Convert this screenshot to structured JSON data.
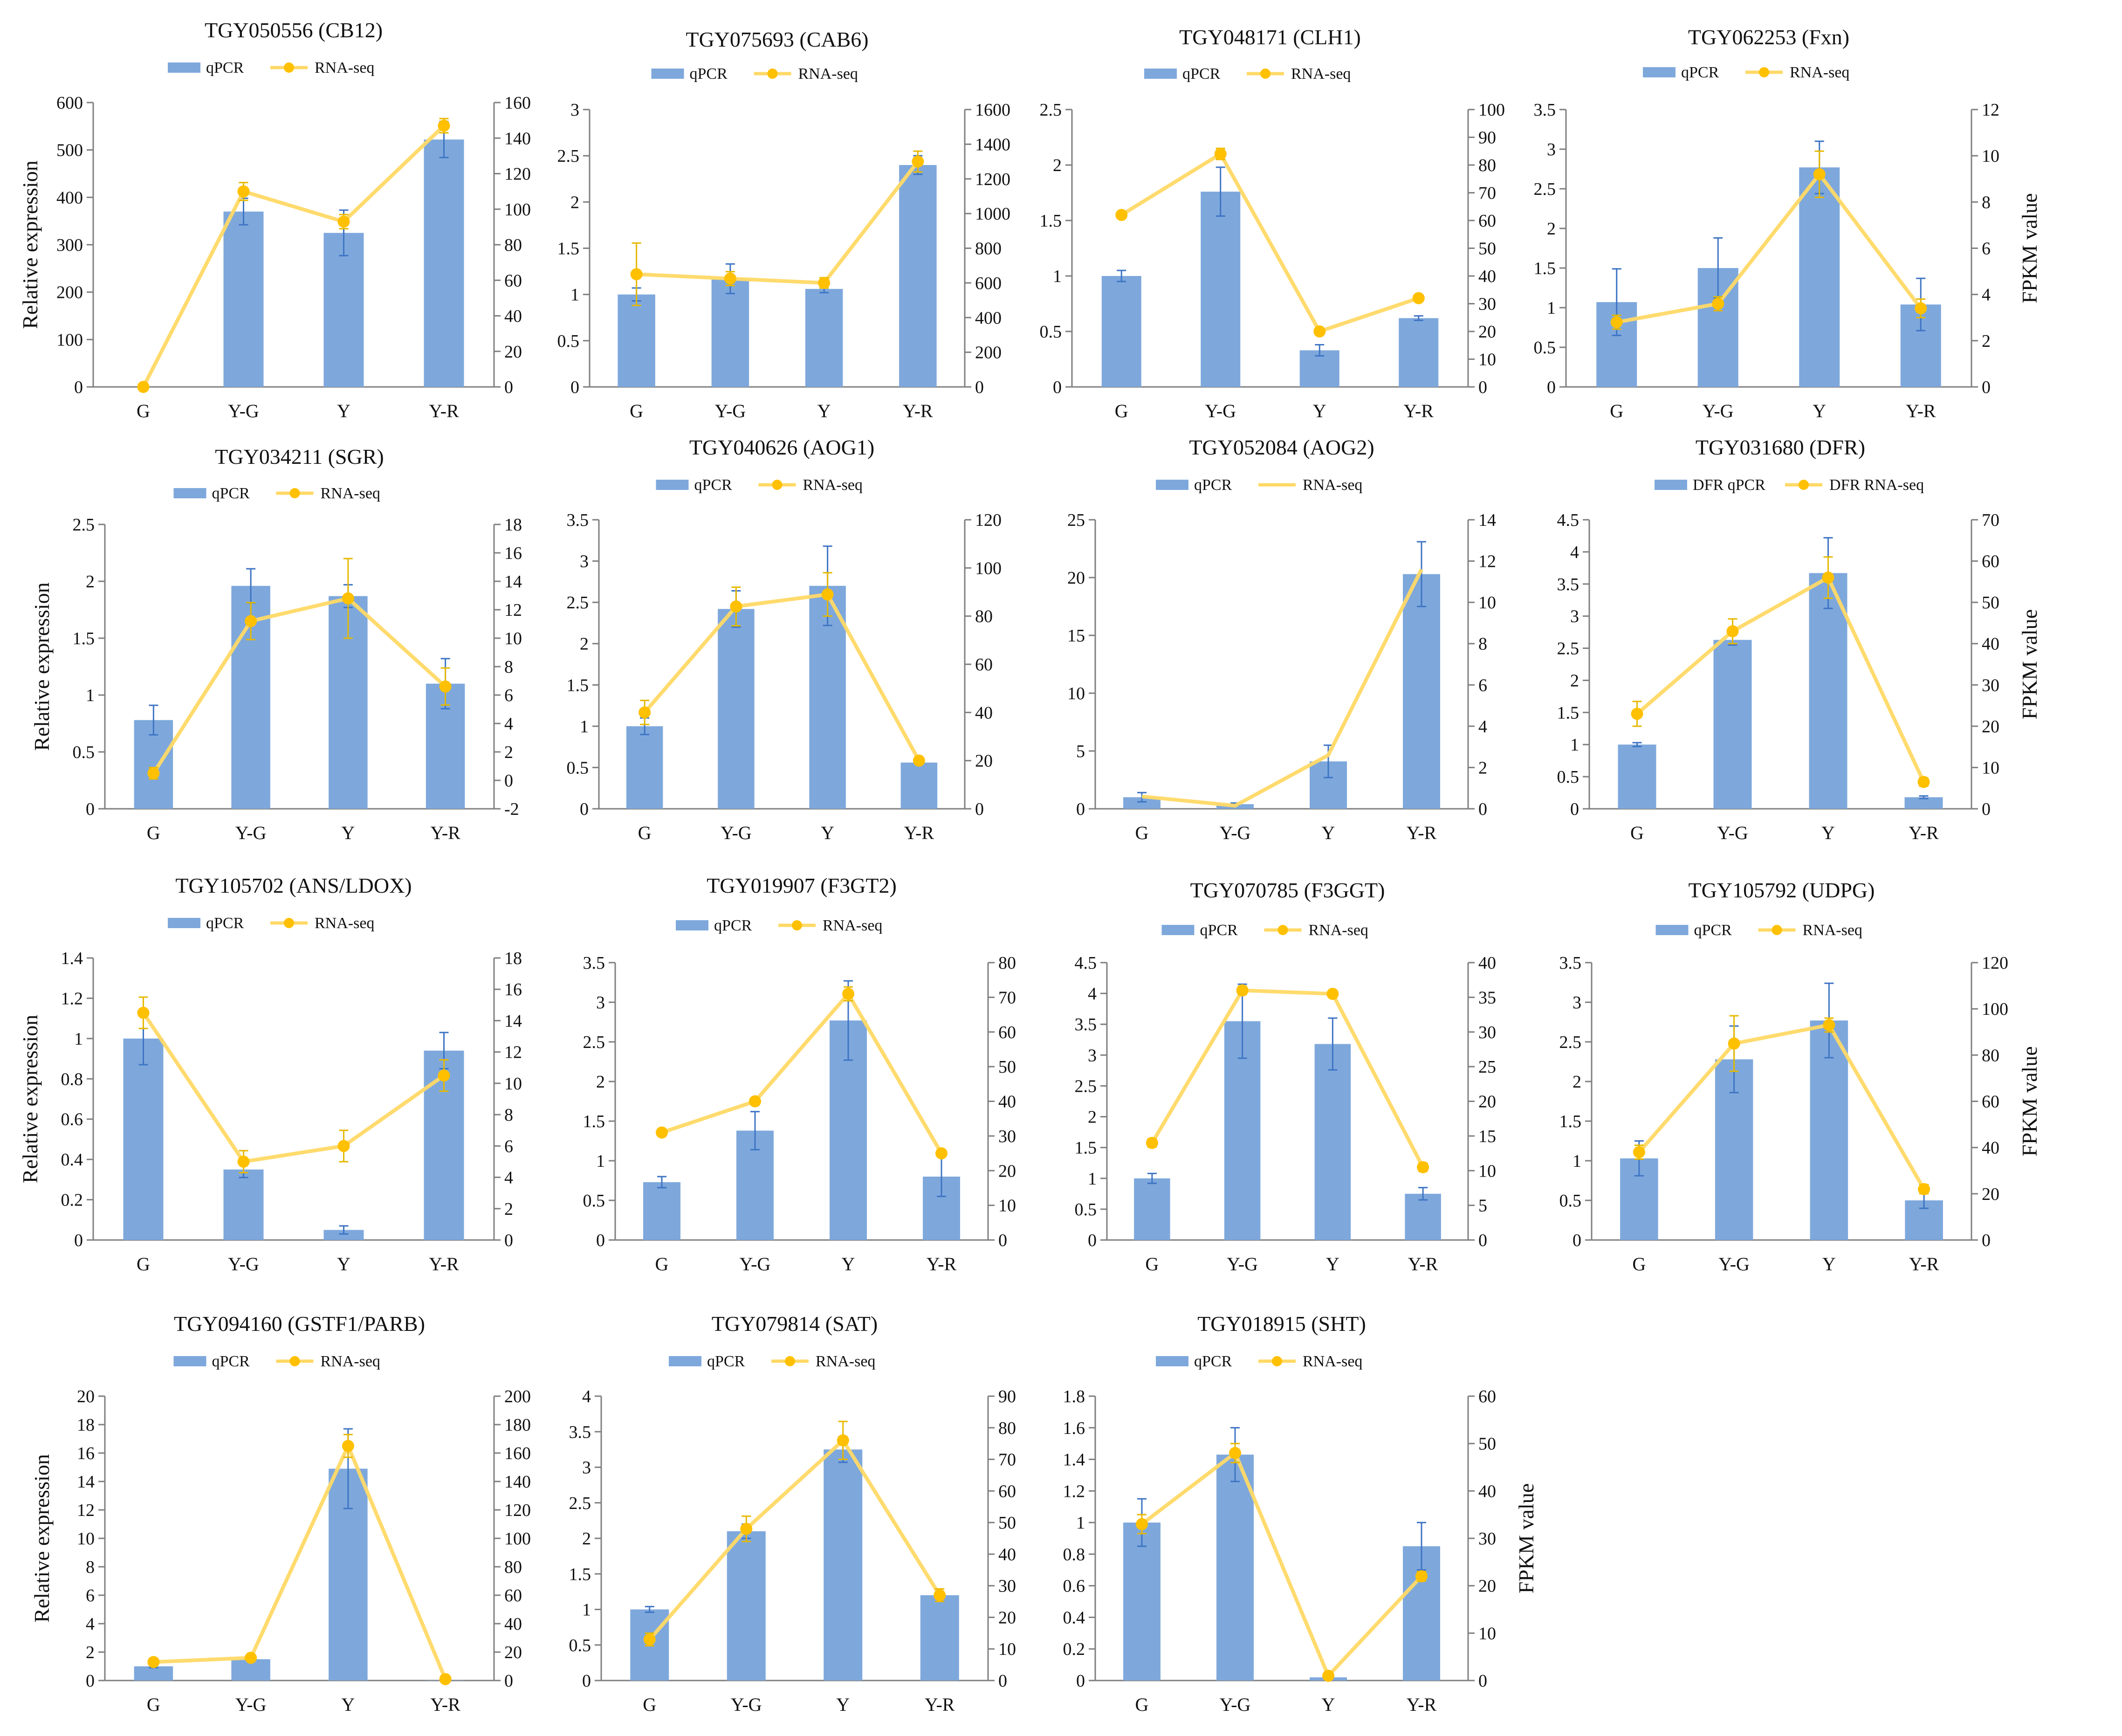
{
  "colors": {
    "bar": "#7ea8dc",
    "bar_err": "#3e74c4",
    "line": "#ffd966",
    "marker": "#ffc000",
    "marker_err": "#e6b800",
    "axis": "#7f7f7f",
    "text": "#111111"
  },
  "chart_data": [
    {
      "type": "bar+line",
      "title": "TGY050556  (CB12)",
      "categories": [
        "G",
        "Y-G",
        "Y",
        "Y-R"
      ],
      "legend": [
        "qPCR",
        "RNA-seq"
      ],
      "legend_line_marker": true,
      "ylabel": "Relative expression",
      "y2label": "",
      "ylim": [
        0,
        600
      ],
      "yticks": [
        0,
        100,
        200,
        300,
        400,
        500,
        600
      ],
      "y2lim": [
        0,
        160
      ],
      "y2ticks": [
        0,
        20,
        40,
        60,
        80,
        100,
        120,
        140,
        160
      ],
      "series": [
        {
          "name": "qPCR",
          "axis": "left",
          "values": [
            0,
            370,
            325,
            522
          ],
          "errors": [
            0,
            28,
            48,
            38
          ]
        },
        {
          "name": "RNA-seq",
          "axis": "right",
          "values": [
            0,
            110,
            93,
            147
          ],
          "errors": [
            0,
            5,
            4,
            4
          ]
        }
      ]
    },
    {
      "type": "bar+line",
      "title": "TGY075693  (CAB6)",
      "categories": [
        "G",
        "Y-G",
        "Y",
        "Y-R"
      ],
      "legend": [
        "qPCR",
        "RNA-seq"
      ],
      "legend_line_marker": true,
      "ylabel": "",
      "y2label": "",
      "ylim": [
        0,
        3
      ],
      "yticks": [
        0,
        0.5,
        1,
        1.5,
        2,
        2.5,
        3
      ],
      "y2lim": [
        0,
        1600
      ],
      "y2ticks": [
        0,
        200,
        400,
        600,
        800,
        1000,
        1200,
        1400,
        1600
      ],
      "series": [
        {
          "name": "qPCR",
          "axis": "left",
          "values": [
            1.0,
            1.17,
            1.06,
            2.4
          ],
          "errors": [
            0.07,
            0.16,
            0.04,
            0.1
          ]
        },
        {
          "name": "RNA-seq",
          "axis": "right",
          "values": [
            650,
            625,
            600,
            1300
          ],
          "errors": [
            180,
            40,
            30,
            60
          ]
        }
      ]
    },
    {
      "type": "bar+line",
      "title": "TGY048171  (CLH1)",
      "categories": [
        "G",
        "Y-G",
        "Y",
        "Y-R"
      ],
      "legend": [
        "qPCR",
        "RNA-seq"
      ],
      "legend_line_marker": true,
      "ylabel": "",
      "y2label": "",
      "ylim": [
        0,
        2.5
      ],
      "yticks": [
        0,
        0.5,
        1,
        1.5,
        2,
        2.5
      ],
      "y2lim": [
        0,
        100
      ],
      "y2ticks": [
        0,
        10,
        20,
        30,
        40,
        50,
        60,
        70,
        80,
        90,
        100
      ],
      "series": [
        {
          "name": "qPCR",
          "axis": "left",
          "values": [
            1.0,
            1.76,
            0.33,
            0.62
          ],
          "errors": [
            0.05,
            0.22,
            0.05,
            0.02
          ]
        },
        {
          "name": "RNA-seq",
          "axis": "right",
          "values": [
            62,
            84,
            20,
            32
          ],
          "errors": [
            1,
            2,
            1,
            1
          ]
        }
      ]
    },
    {
      "type": "bar+line",
      "title": "TGY062253  (Fxn)",
      "categories": [
        "G",
        "Y-G",
        "Y",
        "Y-R"
      ],
      "legend": [
        "qPCR",
        "RNA-seq"
      ],
      "legend_line_marker": true,
      "ylabel": "",
      "y2label": "FPKM value",
      "ylim": [
        0,
        3.5
      ],
      "yticks": [
        0,
        0.5,
        1,
        1.5,
        2,
        2.5,
        3,
        3.5
      ],
      "y2lim": [
        0,
        12
      ],
      "y2ticks": [
        0,
        2,
        4,
        6,
        8,
        10,
        12
      ],
      "series": [
        {
          "name": "qPCR",
          "axis": "left",
          "values": [
            1.07,
            1.5,
            2.77,
            1.04
          ],
          "errors": [
            0.42,
            0.38,
            0.33,
            0.33
          ]
        },
        {
          "name": "RNA-seq",
          "axis": "right",
          "values": [
            2.8,
            3.6,
            9.2,
            3.4
          ],
          "errors": [
            0.3,
            0.3,
            1.0,
            0.4
          ]
        }
      ]
    },
    {
      "type": "bar+line",
      "title": "TGY034211  (SGR)",
      "categories": [
        "G",
        "Y-G",
        "Y",
        "Y-R"
      ],
      "legend": [
        "qPCR",
        "RNA-seq"
      ],
      "legend_line_marker": true,
      "ylabel": "Relative expression",
      "y2label": "",
      "ylim": [
        0,
        2.5
      ],
      "yticks": [
        0,
        0.5,
        1,
        1.5,
        2,
        2.5
      ],
      "y2lim": [
        -2,
        18
      ],
      "y2ticks": [
        -2,
        0,
        2,
        4,
        6,
        8,
        10,
        12,
        14,
        16,
        18
      ],
      "series": [
        {
          "name": "qPCR",
          "axis": "left",
          "values": [
            0.78,
            1.96,
            1.87,
            1.1
          ],
          "errors": [
            0.13,
            0.15,
            0.1,
            0.22
          ]
        },
        {
          "name": "RNA-seq",
          "axis": "right",
          "values": [
            0.5,
            11.2,
            12.8,
            6.6
          ],
          "errors": [
            0.4,
            1.3,
            2.8,
            1.3
          ]
        }
      ]
    },
    {
      "type": "bar+line",
      "title": "TGY040626  (AOG1)",
      "categories": [
        "G",
        "Y-G",
        "Y",
        "Y-R"
      ],
      "legend": [
        "qPCR",
        "RNA-seq"
      ],
      "legend_line_marker": true,
      "ylabel": "",
      "y2label": "",
      "ylim": [
        0,
        3.5
      ],
      "yticks": [
        0,
        0.5,
        1,
        1.5,
        2,
        2.5,
        3,
        3.5
      ],
      "y2lim": [
        0,
        120
      ],
      "y2ticks": [
        0,
        20,
        40,
        60,
        80,
        100,
        120
      ],
      "series": [
        {
          "name": "qPCR",
          "axis": "left",
          "values": [
            1.0,
            2.42,
            2.7,
            0.56
          ],
          "errors": [
            0.1,
            0.22,
            0.48,
            0.02
          ]
        },
        {
          "name": "RNA-seq",
          "axis": "right",
          "values": [
            40,
            84,
            89,
            20
          ],
          "errors": [
            5,
            8,
            9,
            1
          ]
        }
      ]
    },
    {
      "type": "bar+line",
      "title": "TGY052084  (AOG2)",
      "categories": [
        "G",
        "Y-G",
        "Y",
        "Y-R"
      ],
      "legend": [
        "qPCR",
        "RNA-seq"
      ],
      "legend_line_marker": false,
      "ylabel": "",
      "y2label": "",
      "ylim": [
        0,
        25
      ],
      "yticks": [
        0,
        5,
        10,
        15,
        20,
        25
      ],
      "y2lim": [
        0,
        14
      ],
      "y2ticks": [
        0,
        2,
        4,
        6,
        8,
        10,
        12,
        14
      ],
      "series": [
        {
          "name": "qPCR",
          "axis": "left",
          "values": [
            1.0,
            0.4,
            4.1,
            20.3
          ],
          "errors": [
            0.4,
            0.1,
            1.4,
            2.8
          ]
        },
        {
          "name": "RNA-seq",
          "axis": "right",
          "values": [
            0.6,
            0.15,
            2.6,
            11.6
          ],
          "errors": [
            0,
            0,
            0,
            0
          ]
        }
      ]
    },
    {
      "type": "bar+line",
      "title": "TGY031680  (DFR)",
      "categories": [
        "G",
        "Y-G",
        "Y",
        "Y-R"
      ],
      "legend": [
        "DFR qPCR",
        "DFR RNA-seq"
      ],
      "legend_line_marker": true,
      "ylabel": "",
      "y2label": "FPKM value",
      "ylim": [
        0,
        4.5
      ],
      "yticks": [
        0,
        0.5,
        1,
        1.5,
        2,
        2.5,
        3,
        3.5,
        4,
        4.5
      ],
      "y2lim": [
        0,
        70
      ],
      "y2ticks": [
        0,
        10,
        20,
        30,
        40,
        50,
        60,
        70
      ],
      "series": [
        {
          "name": "qPCR",
          "axis": "left",
          "values": [
            1.0,
            2.63,
            3.67,
            0.18
          ],
          "errors": [
            0.03,
            0.08,
            0.55,
            0.02
          ]
        },
        {
          "name": "RNA-seq",
          "axis": "right",
          "values": [
            23,
            43,
            56,
            6.5
          ],
          "errors": [
            3,
            3,
            5,
            1
          ]
        }
      ]
    },
    {
      "type": "bar+line",
      "title": "TGY105702  (ANS/LDOX)",
      "categories": [
        "G",
        "Y-G",
        "Y",
        "Y-R"
      ],
      "legend": [
        "qPCR",
        "RNA-seq"
      ],
      "legend_line_marker": true,
      "ylabel": "Relative expression",
      "y2label": "",
      "ylim": [
        0,
        1.4
      ],
      "yticks": [
        0,
        0.2,
        0.4,
        0.6,
        0.8,
        1,
        1.2,
        1.4
      ],
      "y2lim": [
        0,
        18
      ],
      "y2ticks": [
        0,
        2,
        4,
        6,
        8,
        10,
        12,
        14,
        16,
        18
      ],
      "series": [
        {
          "name": "qPCR",
          "axis": "left",
          "values": [
            1.0,
            0.35,
            0.05,
            0.94
          ],
          "errors": [
            0.13,
            0.04,
            0.02,
            0.09
          ]
        },
        {
          "name": "RNA-seq",
          "axis": "right",
          "values": [
            14.5,
            5.0,
            6.0,
            10.5
          ],
          "errors": [
            1.0,
            0.7,
            1.0,
            1.0
          ]
        }
      ]
    },
    {
      "type": "bar+line",
      "title": "TGY019907  (F3GT2)",
      "categories": [
        "G",
        "Y-G",
        "Y",
        "Y-R"
      ],
      "legend": [
        "qPCR",
        "RNA-seq"
      ],
      "legend_line_marker": true,
      "ylabel": "",
      "y2label": "",
      "ylim": [
        0,
        3.5
      ],
      "yticks": [
        0,
        0.5,
        1,
        1.5,
        2,
        2.5,
        3,
        3.5
      ],
      "y2lim": [
        0,
        80
      ],
      "y2ticks": [
        0,
        10,
        20,
        30,
        40,
        50,
        60,
        70,
        80
      ],
      "series": [
        {
          "name": "qPCR",
          "axis": "left",
          "values": [
            0.73,
            1.38,
            2.77,
            0.8
          ],
          "errors": [
            0.07,
            0.24,
            0.5,
            0.25
          ]
        },
        {
          "name": "RNA-seq",
          "axis": "right",
          "values": [
            31,
            40,
            71,
            25
          ],
          "errors": [
            1,
            1,
            2,
            1
          ]
        }
      ]
    },
    {
      "type": "bar+line",
      "title": "TGY070785  (F3GGT)",
      "categories": [
        "G",
        "Y-G",
        "Y",
        "Y-R"
      ],
      "legend": [
        "qPCR",
        "RNA-seq"
      ],
      "legend_line_marker": true,
      "ylabel": "",
      "y2label": "",
      "ylim": [
        0,
        4.5
      ],
      "yticks": [
        0,
        0.5,
        1,
        1.5,
        2,
        2.5,
        3,
        3.5,
        4,
        4.5
      ],
      "y2lim": [
        0,
        40
      ],
      "y2ticks": [
        0,
        5,
        10,
        15,
        20,
        25,
        30,
        35,
        40
      ],
      "series": [
        {
          "name": "qPCR",
          "axis": "left",
          "values": [
            1.0,
            3.55,
            3.18,
            0.75
          ],
          "errors": [
            0.08,
            0.6,
            0.42,
            0.1
          ]
        },
        {
          "name": "RNA-seq",
          "axis": "right",
          "values": [
            14,
            36,
            35.5,
            10.5
          ],
          "errors": [
            0.6,
            0.6,
            0.5,
            0.6
          ]
        }
      ]
    },
    {
      "type": "bar+line",
      "title": "TGY105792  (UDPG)",
      "categories": [
        "G",
        "Y-G",
        "Y",
        "Y-R"
      ],
      "legend": [
        "qPCR",
        "RNA-seq"
      ],
      "legend_line_marker": true,
      "ylabel": "",
      "y2label": "FPKM value",
      "ylim": [
        0,
        3.5
      ],
      "yticks": [
        0,
        0.5,
        1,
        1.5,
        2,
        2.5,
        3,
        3.5
      ],
      "y2lim": [
        0,
        120
      ],
      "y2ticks": [
        0,
        20,
        40,
        60,
        80,
        100,
        120
      ],
      "series": [
        {
          "name": "qPCR",
          "axis": "left",
          "values": [
            1.03,
            2.28,
            2.77,
            0.5
          ],
          "errors": [
            0.22,
            0.42,
            0.47,
            0.1
          ]
        },
        {
          "name": "RNA-seq",
          "axis": "right",
          "values": [
            38,
            85,
            93,
            22
          ],
          "errors": [
            3,
            12,
            3,
            2
          ]
        }
      ]
    },
    {
      "type": "bar+line",
      "title": "TGY094160  (GSTF1/PARB)",
      "categories": [
        "G",
        "Y-G",
        "Y",
        "Y-R"
      ],
      "legend": [
        "qPCR",
        "RNA-seq"
      ],
      "legend_line_marker": true,
      "ylabel": "Relative expression",
      "y2label": "",
      "ylim": [
        0,
        20
      ],
      "yticks": [
        0,
        2,
        4,
        6,
        8,
        10,
        12,
        14,
        16,
        18,
        20
      ],
      "y2lim": [
        0,
        200
      ],
      "y2ticks": [
        0,
        20,
        40,
        60,
        80,
        100,
        120,
        140,
        160,
        180,
        200
      ],
      "series": [
        {
          "name": "qPCR",
          "axis": "left",
          "values": [
            1.0,
            1.5,
            14.9,
            0.02
          ],
          "errors": [
            0.1,
            0.1,
            2.8,
            0
          ]
        },
        {
          "name": "RNA-seq",
          "axis": "right",
          "values": [
            13,
            16,
            165,
            1
          ],
          "errors": [
            1,
            1,
            8,
            0
          ]
        }
      ]
    },
    {
      "type": "bar+line",
      "title": "TGY079814  (SAT)",
      "categories": [
        "G",
        "Y-G",
        "Y",
        "Y-R"
      ],
      "legend": [
        "qPCR",
        "RNA-seq"
      ],
      "legend_line_marker": true,
      "ylabel": "",
      "y2label": "",
      "ylim": [
        0,
        4
      ],
      "yticks": [
        0,
        0.5,
        1,
        1.5,
        2,
        2.5,
        3,
        3.5,
        4
      ],
      "y2lim": [
        0,
        90
      ],
      "y2ticks": [
        0,
        10,
        20,
        30,
        40,
        50,
        60,
        70,
        80,
        90
      ],
      "series": [
        {
          "name": "qPCR",
          "axis": "left",
          "values": [
            1.0,
            2.1,
            3.25,
            1.2
          ],
          "errors": [
            0.04,
            0.1,
            0.18,
            0.02
          ]
        },
        {
          "name": "RNA-seq",
          "axis": "right",
          "values": [
            13,
            48,
            76,
            27
          ],
          "errors": [
            2,
            4,
            6,
            2
          ]
        }
      ]
    },
    {
      "type": "bar+line",
      "title": "TGY018915  (SHT)",
      "categories": [
        "G",
        "Y-G",
        "Y",
        "Y-R"
      ],
      "legend": [
        "qPCR",
        "RNA-seq"
      ],
      "legend_line_marker": true,
      "ylabel": "",
      "y2label": "FPKM value",
      "ylim": [
        0,
        1.8
      ],
      "yticks": [
        0,
        0.2,
        0.4,
        0.6,
        0.8,
        1,
        1.2,
        1.4,
        1.6,
        1.8
      ],
      "y2lim": [
        0,
        60
      ],
      "y2ticks": [
        0,
        10,
        20,
        30,
        40,
        50,
        60
      ],
      "series": [
        {
          "name": "qPCR",
          "axis": "left",
          "values": [
            1.0,
            1.43,
            0.02,
            0.85
          ],
          "errors": [
            0.15,
            0.17,
            0,
            0.15
          ]
        },
        {
          "name": "RNA-seq",
          "axis": "right",
          "values": [
            33,
            48,
            1,
            22
          ],
          "errors": [
            2,
            2,
            0,
            1
          ]
        }
      ]
    }
  ]
}
